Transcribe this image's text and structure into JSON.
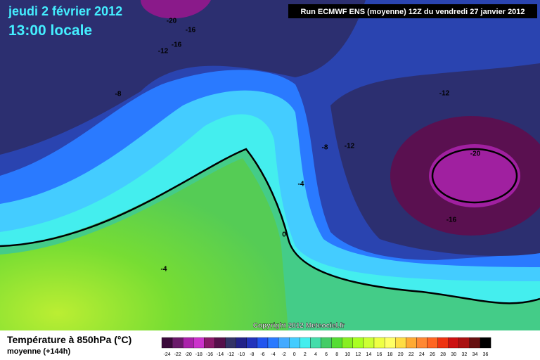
{
  "header": {
    "date": "jeudi 2 février 2012",
    "time": "13:00 locale",
    "run": "Run ECMWF ENS (moyenne) 12Z du vendredi 27 janvier 2012"
  },
  "map": {
    "contour_labels": [
      "-20",
      "-16",
      "-12",
      "-16",
      "-8",
      "-12",
      "-8",
      "-12",
      "-20",
      "-4",
      "0",
      "-16",
      "-4"
    ],
    "copyright": "Copyright 2012 Meteociel.fr"
  },
  "legend": {
    "title": "Température à 850hPa (°C)",
    "subtitle": "moyenne  (+144h)",
    "scale_labels": [
      "-24",
      "-22",
      "-20",
      "-18",
      "-16",
      "-14",
      "-12",
      "-10",
      "-8",
      "-6",
      "-4",
      "-2",
      "0",
      "2",
      "4",
      "6",
      "8",
      "10",
      "12",
      "14",
      "16",
      "18",
      "20",
      "22",
      "24",
      "26",
      "28",
      "30",
      "32",
      "34",
      "36"
    ],
    "colors": [
      "#3a0a3a",
      "#6a1a6a",
      "#aa22aa",
      "#cc33cc",
      "#8a1a6a",
      "#55104a",
      "#333366",
      "#222288",
      "#2233bb",
      "#2255ee",
      "#2a7aff",
      "#44aaff",
      "#44ccff",
      "#44eeee",
      "#44ddaa",
      "#44cc66",
      "#55dd33",
      "#88ee22",
      "#aaff22",
      "#ccff33",
      "#eeff44",
      "#ffff66",
      "#ffdd44",
      "#ffaa33",
      "#ff8833",
      "#ff6622",
      "#ee3311",
      "#cc1111",
      "#aa1111",
      "#661111",
      "#000000"
    ]
  }
}
